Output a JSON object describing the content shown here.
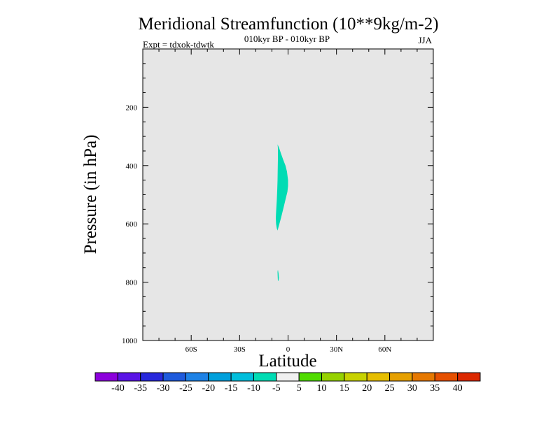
{
  "chart_data": {
    "type": "heatmap",
    "title": "Meridional Streamfunction (10**9kg/m-2)",
    "subtitle_center": "010kyr BP - 010kyr BP",
    "subtitle_left": "Expt = tdxok-tdwtk",
    "subtitle_right": "JJA",
    "xlabel": "Latitude",
    "ylabel": "Pressure (in hPa)",
    "xlim": [
      -90,
      90
    ],
    "ylim": [
      1000,
      0
    ],
    "x_ticks": [
      {
        "value": -60,
        "label": "60S"
      },
      {
        "value": -30,
        "label": "30S"
      },
      {
        "value": 0,
        "label": "0"
      },
      {
        "value": 30,
        "label": "30N"
      },
      {
        "value": 60,
        "label": "60N"
      }
    ],
    "y_ticks": [
      {
        "value": 200,
        "label": "200"
      },
      {
        "value": 400,
        "label": "400"
      },
      {
        "value": 600,
        "label": "600"
      },
      {
        "value": 800,
        "label": "800"
      },
      {
        "value": 1000,
        "label": "1000"
      }
    ],
    "background_color": "#e6e6e6",
    "regions": [
      {
        "name": "upper",
        "color": "#00dcb4",
        "range": "-10 to -5",
        "outline": [
          [
            -6.5,
            327
          ],
          [
            -5.5,
            340
          ],
          [
            -4.3,
            360
          ],
          [
            -3.0,
            380
          ],
          [
            -1.6,
            400
          ],
          [
            -0.7,
            420
          ],
          [
            0,
            450
          ],
          [
            0,
            470
          ],
          [
            -0.4,
            490
          ],
          [
            -1.3,
            510
          ],
          [
            -2.6,
            540
          ],
          [
            -4.4,
            580
          ],
          [
            -6.5,
            623
          ],
          [
            -7.0,
            615
          ],
          [
            -7.4,
            600
          ],
          [
            -7.6,
            580
          ],
          [
            -7.4,
            560
          ],
          [
            -7.0,
            520
          ],
          [
            -6.7,
            480
          ],
          [
            -6.5,
            450
          ],
          [
            -6.4,
            420
          ],
          [
            -6.3,
            380
          ],
          [
            -6.3,
            340
          ]
        ]
      },
      {
        "name": "lower",
        "color": "#00dcb4",
        "range": "-10 to -5",
        "outline": [
          [
            -6.3,
            757
          ],
          [
            -5.9,
            770
          ],
          [
            -5.7,
            785
          ],
          [
            -5.9,
            795
          ],
          [
            -6.3,
            795
          ],
          [
            -6.4,
            780
          ],
          [
            -6.5,
            765
          ]
        ]
      }
    ],
    "colorbar": {
      "labels": [
        "-40",
        "-35",
        "-30",
        "-25",
        "-20",
        "-15",
        "-10",
        "-5",
        "5",
        "10",
        "15",
        "20",
        "25",
        "30",
        "35",
        "40"
      ],
      "colors": [
        "#8c00dc",
        "#5a14e6",
        "#2828dc",
        "#1e5adc",
        "#1e82e6",
        "#00a0dc",
        "#00bedc",
        "#00dcb4",
        "#f0f0f0",
        "#50dc00",
        "#96d200",
        "#c8d200",
        "#e6be00",
        "#e6a000",
        "#e67800",
        "#e65000",
        "#dc2800"
      ]
    }
  }
}
